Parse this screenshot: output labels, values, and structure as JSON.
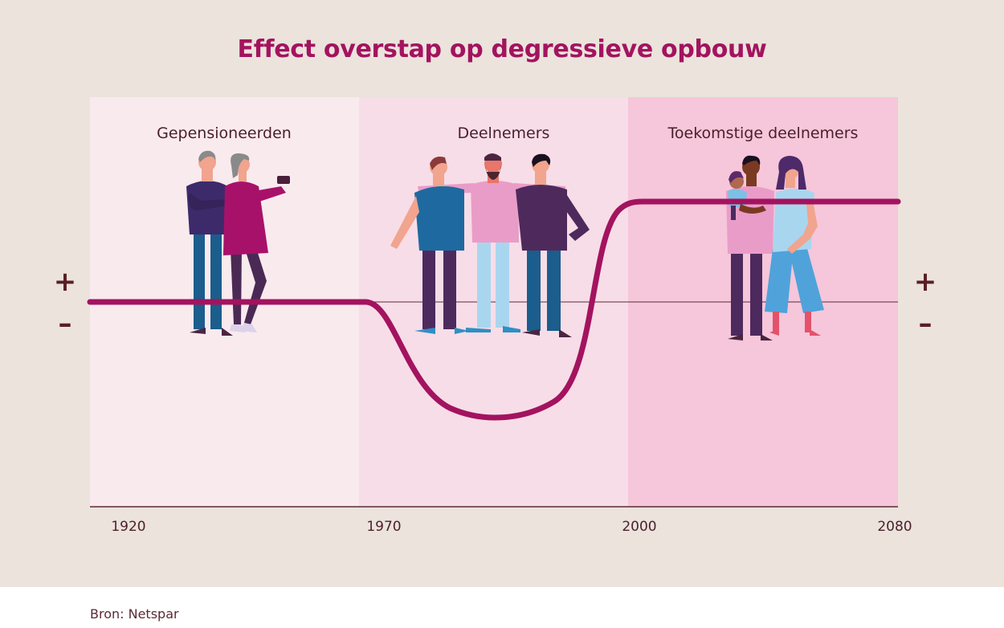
{
  "title": "Effect overstap op degressieve opbouw",
  "source": "Bron: Netspar",
  "zones": [
    {
      "label": "Gepensioneerden",
      "from": 1920,
      "to": 1970,
      "color": "#f9eaee"
    },
    {
      "label": "Deelnemers",
      "from": 1970,
      "to": 2000,
      "color": "#f7dde7"
    },
    {
      "label": "Toekomstige deelnemers",
      "from": 2000,
      "to": 2080,
      "color": "#f6c6da"
    }
  ],
  "x_ticks": [
    "1920",
    "1970",
    "2000",
    "2080"
  ],
  "signs": {
    "plus": "+",
    "minus": "–"
  },
  "colors": {
    "accent": "#a3135f",
    "background": "#ebe3dc",
    "text": "#4a1f2a"
  },
  "illustrations": [
    "gepensioneerden-figures",
    "deelnemers-figures",
    "toekomstige-deelnemers-figures"
  ]
}
